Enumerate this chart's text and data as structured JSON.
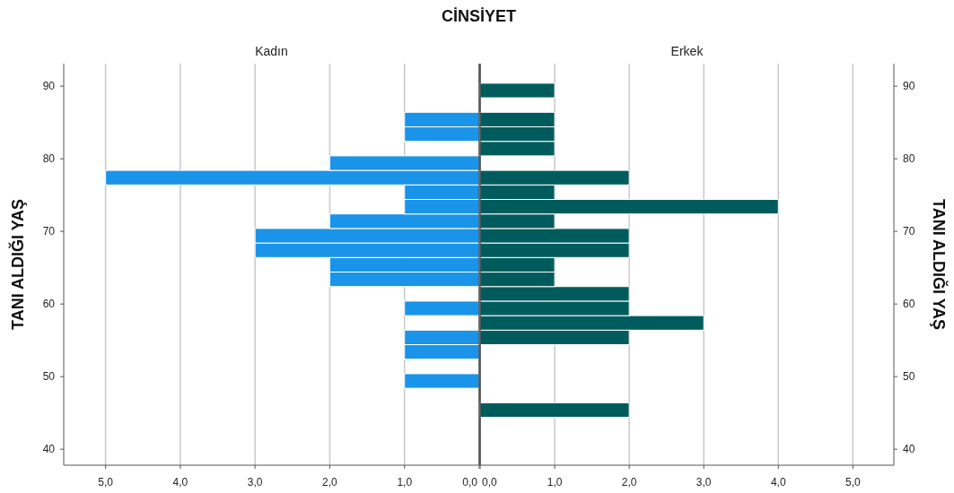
{
  "chart_data": [
    {
      "type": "histogram",
      "orientation": "horizontal",
      "title": "CİNSİYET",
      "subtitle": "Kadın",
      "ylabel": "TANI ALDIĞI YAŞ",
      "color": "#1a94e8",
      "grid": "x",
      "bins": [
        44.4,
        46.4,
        48.4,
        50.4,
        52.4,
        54.4,
        56.4,
        58.4,
        60.4,
        62.4,
        64.4,
        66.4,
        68.4,
        70.4,
        72.4,
        74.4,
        76.4,
        78.4,
        80.4,
        82.4,
        84.4,
        86.4,
        88.4,
        90.4
      ],
      "values": [
        0,
        0,
        1,
        0,
        1,
        1,
        0,
        1,
        0,
        2,
        2,
        3,
        3,
        2,
        1,
        1,
        5,
        2,
        0,
        1,
        1,
        0,
        0
      ],
      "xlim": [
        5.56,
        0
      ],
      "xticks": [
        {
          "value": 5,
          "label": "5,0"
        },
        {
          "value": 4,
          "label": "4,0"
        },
        {
          "value": 3,
          "label": "3,0"
        },
        {
          "value": 2,
          "label": "2,0"
        },
        {
          "value": 1,
          "label": "1,0"
        },
        {
          "value": 0,
          "label": "0,0"
        }
      ],
      "ylim": [
        37.8,
        93.1
      ],
      "yticks": [
        40,
        50,
        60,
        70,
        80,
        90
      ]
    },
    {
      "type": "histogram",
      "orientation": "horizontal",
      "subtitle": "Erkek",
      "ylabel": "TANI ALDIĞI YAŞ",
      "color": "#005c5c",
      "grid": "x",
      "bins": [
        44.4,
        46.4,
        48.4,
        50.4,
        52.4,
        54.4,
        56.4,
        58.4,
        60.4,
        62.4,
        64.4,
        66.4,
        68.4,
        70.4,
        72.4,
        74.4,
        76.4,
        78.4,
        80.4,
        82.4,
        84.4,
        86.4,
        88.4,
        90.4
      ],
      "values": [
        2,
        0,
        0,
        0,
        0,
        2,
        3,
        2,
        2,
        1,
        1,
        2,
        2,
        1,
        4,
        1,
        2,
        0,
        1,
        1,
        1,
        0,
        1
      ],
      "xlim": [
        0,
        5.55
      ],
      "xticks": [
        {
          "value": 0,
          "label": "0,0"
        },
        {
          "value": 1,
          "label": "1,0"
        },
        {
          "value": 2,
          "label": "2,0"
        },
        {
          "value": 3,
          "label": "3,0"
        },
        {
          "value": 4,
          "label": "4,0"
        },
        {
          "value": 5,
          "label": "5,0"
        }
      ],
      "ylim": [
        37.8,
        93.1
      ],
      "yticks": [
        40,
        50,
        60,
        70,
        80,
        90
      ]
    }
  ]
}
